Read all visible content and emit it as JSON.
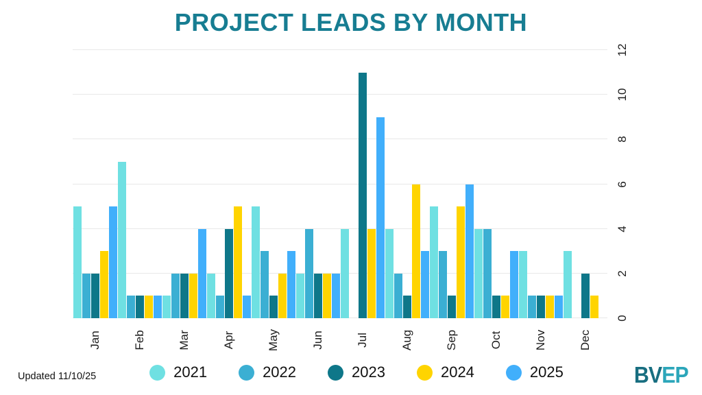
{
  "title": "PROJECT LEADS BY MONTH",
  "footer": {
    "updated": "Updated 11/10/25",
    "logo": {
      "part1": "BV",
      "part2": "EP"
    }
  },
  "colors": {
    "title": "#177D92",
    "grid": "#e8e8e8",
    "logo_dark": "#186E80",
    "logo_light": "#2CA6BA"
  },
  "chart_data": {
    "type": "bar",
    "title": "PROJECT LEADS BY MONTH",
    "categories": [
      "Jan",
      "Feb",
      "Mar",
      "Apr",
      "May",
      "Jun",
      "Jul",
      "Aug",
      "Sep",
      "Oct",
      "Nov",
      "Dec"
    ],
    "series": [
      {
        "name": "2021",
        "color": "#6FE0E2",
        "values": [
          5,
          7,
          1,
          2,
          5,
          2,
          4,
          4,
          5,
          4,
          3,
          3
        ]
      },
      {
        "name": "2022",
        "color": "#3BAFD3",
        "values": [
          2,
          1,
          2,
          1,
          3,
          4,
          0,
          2,
          3,
          4,
          1,
          0
        ]
      },
      {
        "name": "2023",
        "color": "#0E7789",
        "values": [
          2,
          1,
          2,
          4,
          1,
          2,
          11,
          1,
          1,
          1,
          1,
          2
        ]
      },
      {
        "name": "2024",
        "color": "#FFD400",
        "values": [
          3,
          1,
          2,
          5,
          2,
          2,
          4,
          6,
          5,
          1,
          1,
          1
        ]
      },
      {
        "name": "2025",
        "color": "#41AFFB",
        "values": [
          5,
          1,
          4,
          1,
          3,
          2,
          9,
          3,
          6,
          3,
          1,
          0
        ]
      }
    ],
    "xlabel": "",
    "ylabel": "",
    "ylim": [
      0,
      12
    ],
    "yticks": [
      0,
      2,
      4,
      6,
      8,
      10,
      12
    ],
    "grid": true,
    "legend_position": "bottom",
    "y_axis_side": "right",
    "tick_label_rotation": -90
  }
}
